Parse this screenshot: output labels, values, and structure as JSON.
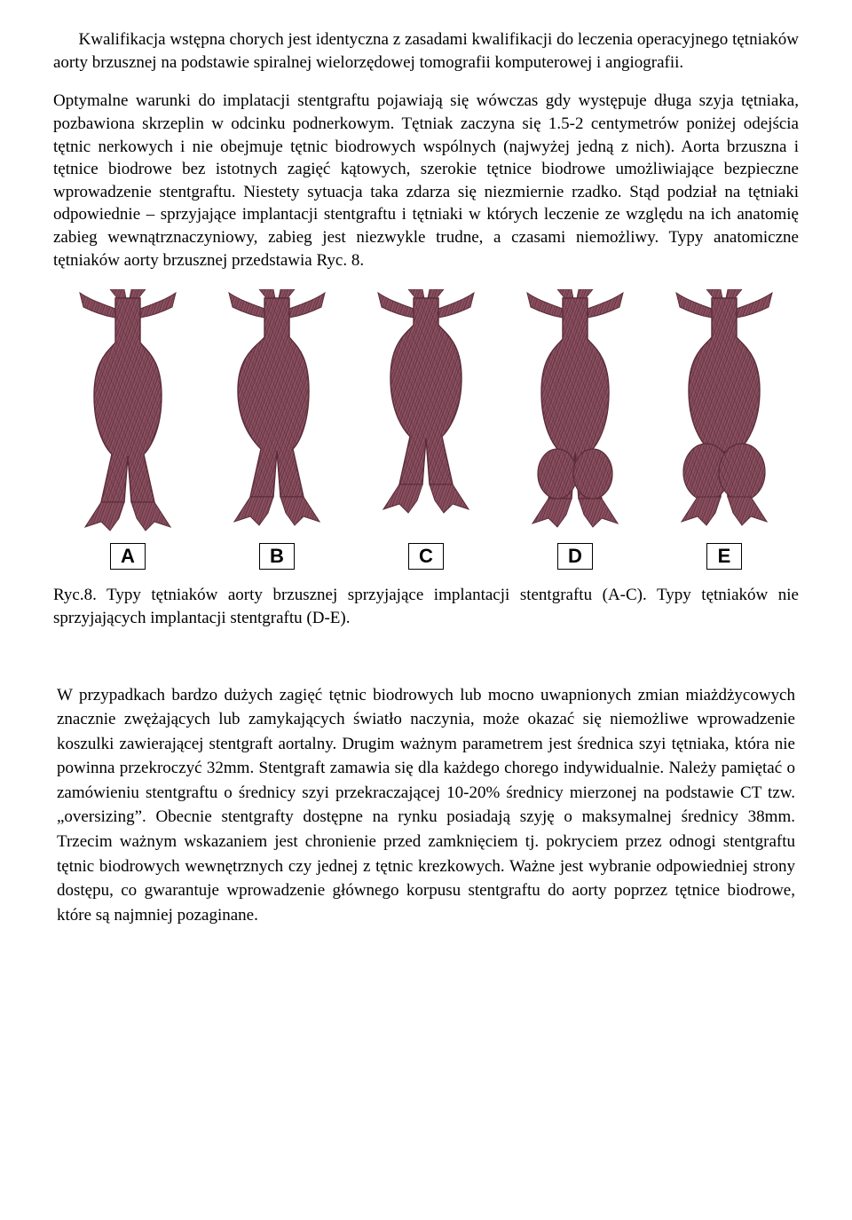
{
  "text": {
    "p1": "Kwalifikacja wstępna chorych jest identyczna z zasadami kwalifikacji do leczenia operacyjnego tętniaków aorty brzusznej na podstawie spiralnej wielorzędowej tomografii komputerowej i angiografii.",
    "p2": "Optymalne warunki do implatacji stentgraftu pojawiają się wówczas gdy występuje długa szyja tętniaka, pozbawiona skrzeplin w odcinku podnerkowym. Tętniak zaczyna się 1.5-2 centymetrów poniżej odejścia tętnic nerkowych i nie obejmuje tętnic biodrowych wspólnych (najwyżej jedną z nich). Aorta brzuszna i tętnice biodrowe bez istotnych zagięć kątowych, szerokie tętnice biodrowe umożliwiające bezpieczne wprowadzenie stentgraftu. Niestety sytuacja taka zdarza się niezmiernie rzadko. Stąd podział na tętniaki odpowiednie – sprzyjające implantacji stentgraftu i tętniaki w których leczenie ze względu na ich anatomię zabieg wewnątrznaczyniowy, zabieg jest niezwykle trudne, a czasami niemożliwy. Typy anatomiczne tętniaków aorty brzusznej przedstawia Ryc. 8.",
    "caption": "Ryc.8. Typy tętniaków aorty brzusznej sprzyjające implantacji stentgraftu (A-C). Typy tętniaków nie sprzyjających implantacji stentgraftu (D-E).",
    "p3": "W przypadkach bardzo dużych zagięć tętnic biodrowych lub mocno uwapnionych zmian miażdżycowych znacznie zwężających lub zamykających światło naczynia, może okazać się niemożliwe wprowadzenie koszulki zawierającej  stentgraft aortalny. Drugim ważnym parametrem jest średnica szyi tętniaka, która nie powinna przekroczyć 32mm. Stentgraft zamawia się dla każdego chorego indywidualnie. Należy pamiętać o zamówieniu stentgraftu o średnicy szyi przekraczającej 10-20% średnicy mierzonej na podstawie CT tzw. „oversizing”. Obecnie stentgrafty dostępne na rynku posiadają szyję o maksymalnej średnicy 38mm. Trzecim ważnym wskazaniem jest chronienie przed zamknięciem tj. pokryciem przez odnogi stentgraftu tętnic biodrowych wewnętrznych czy jednej z tętnic krezkowych. Ważne jest wybranie odpowiedniej strony dostępu, co gwarantuje wprowadzenie głównego korpusu stentgraftu do aorty poprzez tętnice biodrowe, które są najmniej pozaginane."
  },
  "figure": {
    "labels": [
      "A",
      "B",
      "C",
      "D",
      "E"
    ],
    "stroke": "#5a2c3a",
    "fill": "#6b3244",
    "light": "#8a5060",
    "background": "#ffffff",
    "shapes": [
      {
        "bulgeLeft": 38,
        "bulgeRight": 38,
        "iliacBulge": 0,
        "neckLen": 50
      },
      {
        "bulgeLeft": 44,
        "bulgeRight": 36,
        "iliacBulge": 0,
        "neckLen": 44
      },
      {
        "bulgeLeft": 40,
        "bulgeRight": 40,
        "iliacBulge": 0,
        "neckLen": 30
      },
      {
        "bulgeLeft": 38,
        "bulgeRight": 38,
        "iliacBulge": 22,
        "neckLen": 46
      },
      {
        "bulgeLeft": 40,
        "bulgeRight": 40,
        "iliacBulge": 26,
        "neckLen": 44
      }
    ],
    "label_fontsize": 22,
    "label_border": "#000000"
  },
  "colors": {
    "page_bg": "#ffffff",
    "text": "#000000"
  },
  "typography": {
    "body_font": "Times New Roman",
    "body_size_pt": 14,
    "label_font": "Arial",
    "label_weight": "bold"
  }
}
